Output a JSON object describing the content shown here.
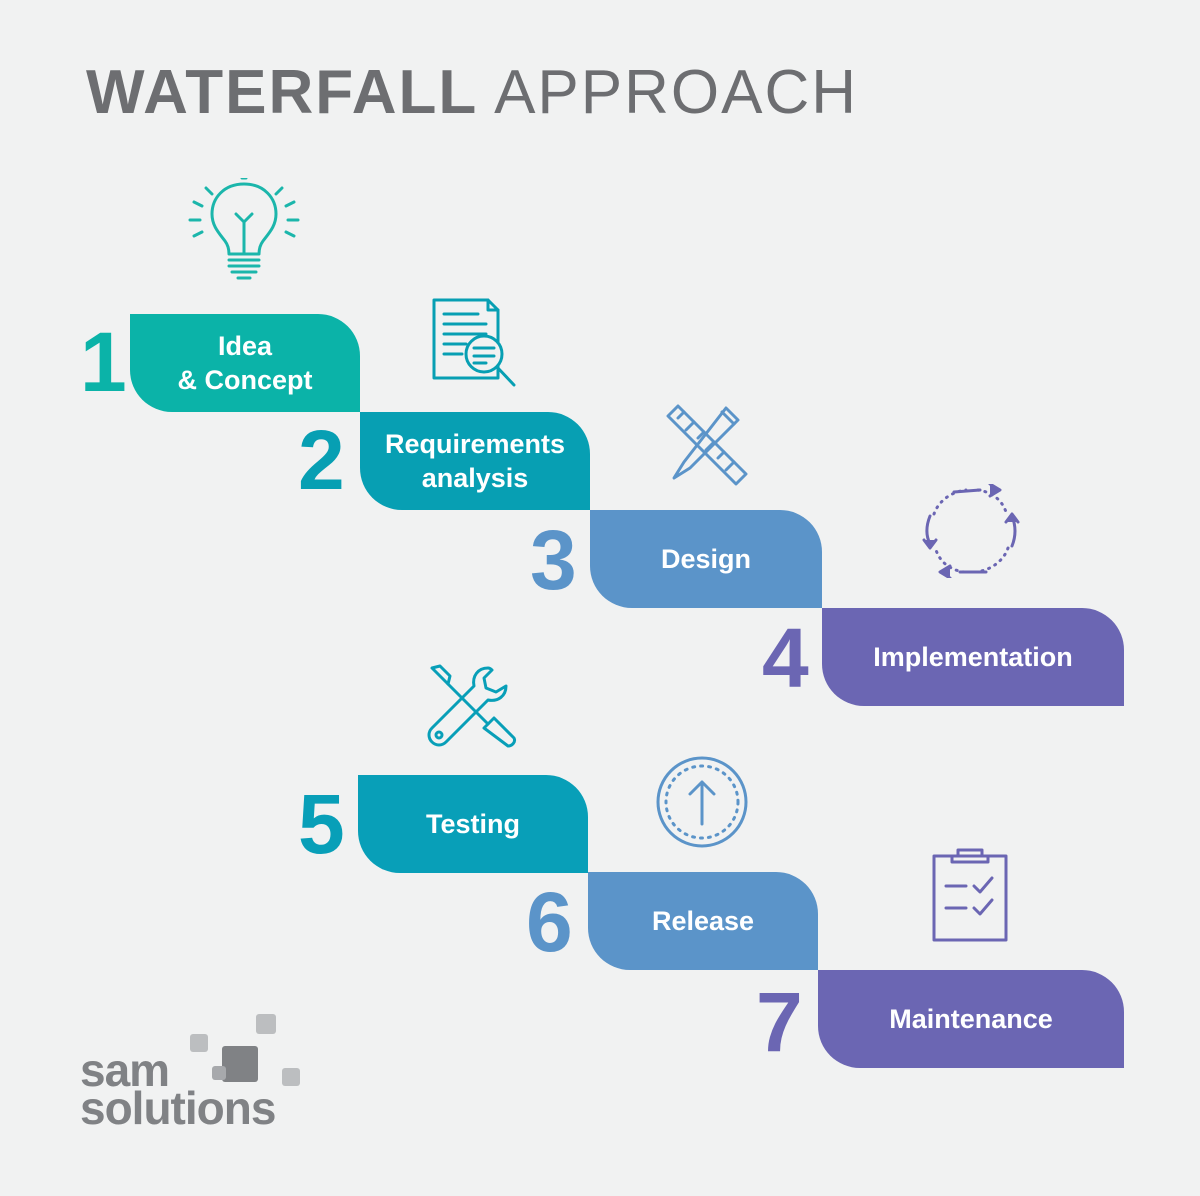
{
  "title": {
    "bold": "WATERFALL",
    "light": "APPROACH"
  },
  "steps": [
    {
      "number": "1",
      "lines": [
        "Idea",
        "& Concept"
      ],
      "color": "#0bb3a8",
      "icon": "lightbulb-icon"
    },
    {
      "number": "2",
      "lines": [
        "Requirements",
        "analysis"
      ],
      "color": "#079fb3",
      "icon": "document-search-icon"
    },
    {
      "number": "3",
      "lines": [
        "Design"
      ],
      "color": "#5b94c9",
      "icon": "ruler-pencil-icon"
    },
    {
      "number": "4",
      "lines": [
        "Implementation"
      ],
      "color": "#6b66b3",
      "icon": "cycle-arrows-icon"
    },
    {
      "number": "5",
      "lines": [
        "Testing"
      ],
      "color": "#089fb8",
      "icon": "wrench-screwdriver-icon"
    },
    {
      "number": "6",
      "lines": [
        "Release"
      ],
      "color": "#5b94c9",
      "icon": "up-arrow-circle-icon"
    },
    {
      "number": "7",
      "lines": [
        "Maintenance"
      ],
      "color": "#6b66b3",
      "icon": "clipboard-checklist-icon"
    }
  ],
  "logo": {
    "line1": "sam",
    "line2": "solutions"
  }
}
